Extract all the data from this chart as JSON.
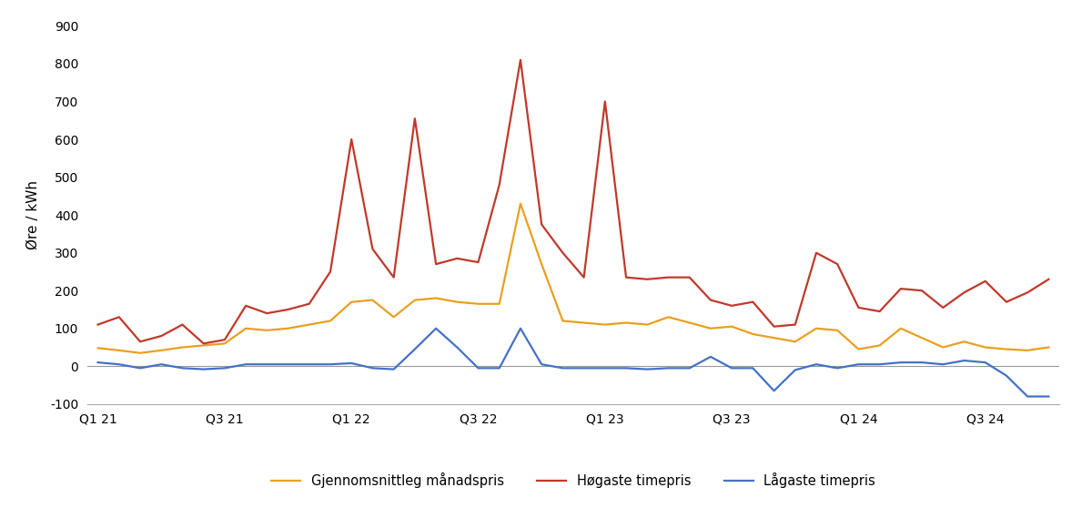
{
  "ylabel": "Øre / kWh",
  "ylim": [
    -100,
    900
  ],
  "yticks": [
    -100,
    0,
    100,
    200,
    300,
    400,
    500,
    600,
    700,
    800,
    900
  ],
  "x_tick_labels": [
    "Q1 21",
    "Q3 21",
    "Q1 22",
    "Q3 22",
    "Q1 23",
    "Q3 23",
    "Q1 24",
    "Q3 24"
  ],
  "avg_color": "#E8A020",
  "high_color": "#C0392B",
  "low_color": "#4472C4",
  "legend_labels": [
    "Gjennomsnittleg månadspris",
    "Høgaste timepris",
    "Lågaste timepris"
  ],
  "line_width": 1.6,
  "avg_monthly": [
    48,
    42,
    35,
    42,
    50,
    55,
    60,
    100,
    95,
    100,
    110,
    120,
    170,
    175,
    130,
    175,
    180,
    170,
    165,
    165,
    430,
    270,
    120,
    115,
    110,
    115,
    110,
    130,
    115,
    100,
    105,
    85,
    75,
    65,
    100,
    95,
    45,
    55,
    100,
    75,
    50,
    65,
    50,
    45,
    42,
    50
  ],
  "high_monthly": [
    110,
    130,
    65,
    80,
    110,
    60,
    70,
    160,
    140,
    150,
    165,
    250,
    600,
    310,
    235,
    655,
    270,
    285,
    275,
    480,
    810,
    375,
    300,
    235,
    700,
    235,
    230,
    235,
    235,
    175,
    160,
    170,
    105,
    110,
    300,
    270,
    155,
    145,
    205,
    200,
    155,
    195,
    225,
    170,
    195,
    230
  ],
  "low_monthly": [
    10,
    5,
    -5,
    5,
    -5,
    -8,
    -5,
    5,
    5,
    5,
    5,
    5,
    8,
    -5,
    -8,
    45,
    100,
    50,
    -5,
    -5,
    100,
    5,
    -5,
    -5,
    -5,
    -5,
    -8,
    -5,
    -5,
    25,
    -5,
    -5,
    -65,
    -10,
    5,
    -5,
    5,
    5,
    10,
    10,
    5,
    15,
    10,
    -25,
    -80,
    -80
  ],
  "x_tick_positions": [
    0,
    6,
    12,
    18,
    24,
    30,
    36,
    42
  ],
  "n_points": 46
}
